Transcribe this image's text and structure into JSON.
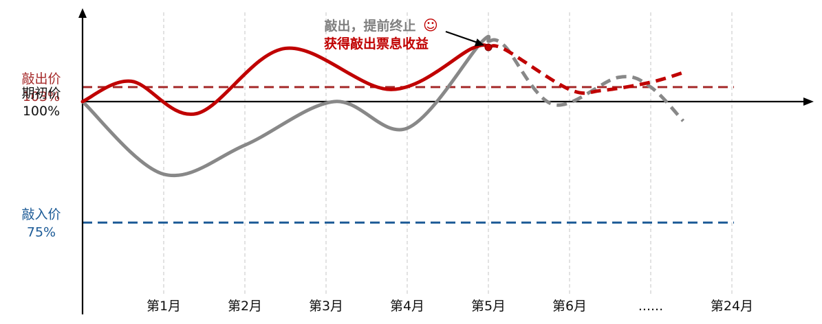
{
  "chart_data": {
    "type": "line",
    "categories": [
      "第1月",
      "第2月",
      "第3月",
      "第4月",
      "第5月",
      "第6月",
      "......",
      "第24月"
    ],
    "y_levels": [
      {
        "name": "敲出价",
        "value_label": "103%",
        "value": 103,
        "color": "#a52a2a",
        "line_style": "dashed"
      },
      {
        "name": "期初价",
        "value_label": "100%",
        "value": 100,
        "color": "#111111",
        "line_style": "axis"
      },
      {
        "name": "敲入价",
        "value_label": "75%",
        "value": 75,
        "color": "#1b5a96",
        "line_style": "dashed"
      }
    ],
    "series": [
      {
        "color": "#c00000",
        "solid_points": [
          [
            0,
            100
          ],
          [
            0.6,
            104.2
          ],
          [
            1.4,
            97.5
          ],
          [
            2.5,
            111
          ],
          [
            3.8,
            102.5
          ],
          [
            4.8,
            111
          ],
          [
            5.0,
            111.2
          ]
        ],
        "dashed_points": [
          [
            5.0,
            111.2
          ],
          [
            5.2,
            110.8
          ],
          [
            6.0,
            102.5
          ],
          [
            6.4,
            102.3
          ],
          [
            7.0,
            104
          ],
          [
            7.4,
            106
          ]
        ]
      },
      {
        "color": "#888888",
        "solid_points": [
          [
            0,
            100
          ],
          [
            1.0,
            85
          ],
          [
            2.0,
            91
          ],
          [
            3.1,
            100
          ],
          [
            4.0,
            94.5
          ],
          [
            4.9,
            112
          ],
          [
            5.0,
            112.5
          ]
        ],
        "dashed_points": [
          [
            5.0,
            112.5
          ],
          [
            5.2,
            111.5
          ],
          [
            5.8,
            99.4
          ],
          [
            6.6,
            105
          ],
          [
            7.0,
            103
          ],
          [
            7.4,
            96
          ]
        ]
      }
    ],
    "knockout_point": {
      "x": 5.0,
      "y": 111.2
    },
    "annotation": {
      "line1": "敲出，提前终止",
      "smiley": "☺",
      "line2": "获得敲出票息收益"
    },
    "grid": "vertical-dashed"
  }
}
